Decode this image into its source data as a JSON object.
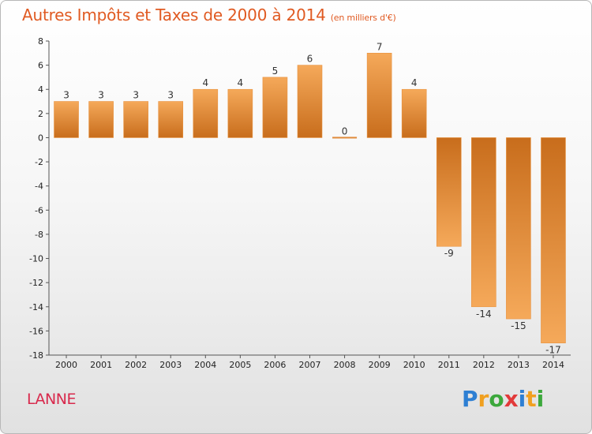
{
  "title": "Autres Impôts et Taxes de 2000 à 2014",
  "title_unit": "(en milliers d'€)",
  "commune": "LANNE",
  "logo": {
    "letters": [
      "P",
      "r",
      "o",
      "x",
      "i",
      "t",
      "i"
    ],
    "colors": [
      "#2d7fd3",
      "#f0a020",
      "#3ca83c",
      "#e23a3a",
      "#2d7fd3",
      "#f0a020",
      "#3ca83c"
    ]
  },
  "colors": {
    "bar_light": "#f5a95a",
    "bar_dark": "#c86d1c",
    "title": "#e05a22",
    "commune": "#d8294c"
  },
  "chart_data": {
    "type": "bar",
    "categories": [
      "2000",
      "2001",
      "2002",
      "2003",
      "2004",
      "2005",
      "2006",
      "2007",
      "2008",
      "2009",
      "2010",
      "2011",
      "2012",
      "2013",
      "2014"
    ],
    "values": [
      3,
      3,
      3,
      3,
      4,
      4,
      5,
      6,
      0,
      7,
      4,
      -9,
      -14,
      -15,
      -17
    ],
    "ylim": [
      -18,
      8
    ],
    "yticks": [
      8,
      6,
      4,
      2,
      0,
      -2,
      -4,
      -6,
      -8,
      -10,
      -12,
      -14,
      -16,
      -18
    ],
    "xlabel": "",
    "ylabel": "",
    "grid": false
  }
}
